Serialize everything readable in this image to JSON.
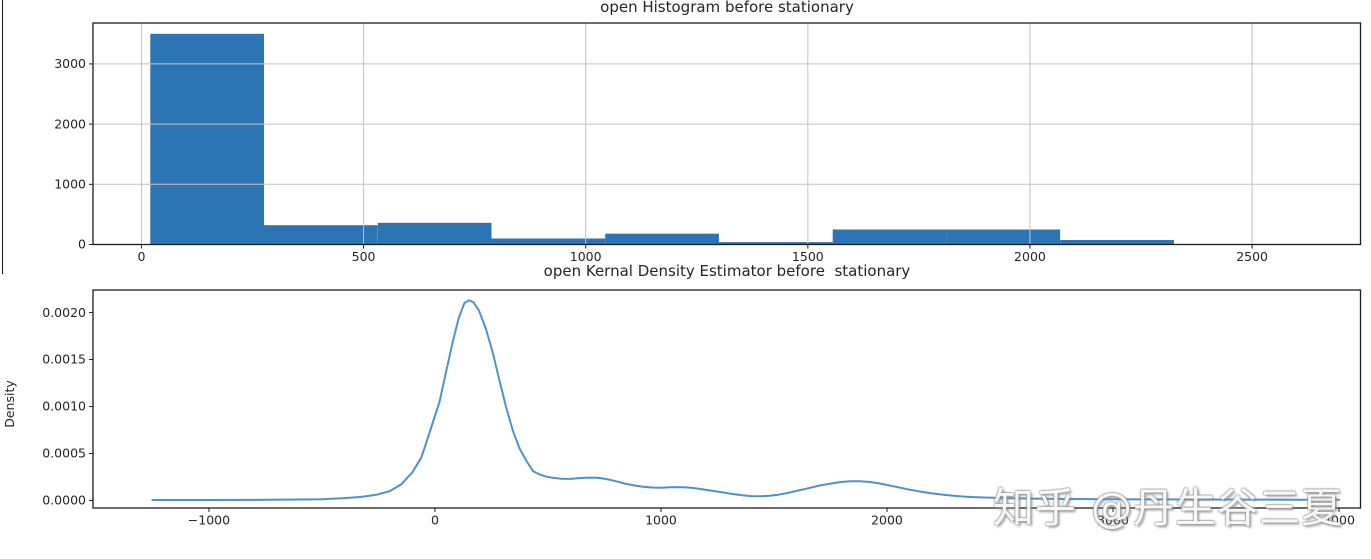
{
  "figure": {
    "watermark": "知乎 @丹生谷三夏"
  },
  "colors": {
    "bar_fill": "#2d74b5",
    "kde_line": "#4e91cc",
    "grid_line": "#c3c3c3",
    "axis_frame": "#1c1c1c",
    "tick_text": "#262626"
  },
  "chart_data": [
    {
      "type": "bar",
      "subtype": "histogram",
      "title": "open Histogram before stationary",
      "xlabel": "",
      "ylabel": "",
      "xlim": [
        -109,
        2744
      ],
      "ylim": [
        0,
        3680
      ],
      "xticks": [
        0,
        500,
        1000,
        1500,
        2000,
        2500
      ],
      "xtick_labels": [
        "0",
        "500",
        "1000",
        "1500",
        "2000",
        "2500"
      ],
      "yticks": [
        0,
        1000,
        2000,
        3000
      ],
      "ytick_labels": [
        "0",
        "1000",
        "2000",
        "3000"
      ],
      "grid": true,
      "legend": null,
      "bin_edges": [
        20,
        276,
        532,
        788,
        1044,
        1300,
        1556,
        1812,
        2068,
        2324
      ],
      "counts": [
        3500,
        320,
        360,
        100,
        180,
        40,
        250,
        250,
        75
      ]
    },
    {
      "type": "line",
      "subtype": "kde",
      "title": "open Kernal Density Estimator before  stationary",
      "xlabel": "",
      "ylabel": "Density",
      "xlim": [
        -1513,
        4095
      ],
      "ylim": [
        -8e-05,
        0.00224
      ],
      "xticks": [
        -1000,
        0,
        1000,
        2000,
        3000,
        4000
      ],
      "xtick_labels": [
        "−1000",
        "0",
        "1000",
        "2000",
        "3000",
        "4000"
      ],
      "yticks": [
        0,
        0.0005,
        0.001,
        0.0015,
        0.002
      ],
      "ytick_labels": [
        "0.0000",
        "0.0005",
        "0.0010",
        "0.0015",
        "0.0020"
      ],
      "grid": false,
      "legend": null,
      "points": [
        [
          -1250,
          5e-06
        ],
        [
          -1000,
          5e-06
        ],
        [
          -800,
          6e-06
        ],
        [
          -600,
          1e-05
        ],
        [
          -500,
          1.4e-05
        ],
        [
          -400,
          2.5e-05
        ],
        [
          -320,
          4e-05
        ],
        [
          -260,
          6e-05
        ],
        [
          -200,
          0.0001
        ],
        [
          -150,
          0.00017
        ],
        [
          -100,
          0.0003
        ],
        [
          -60,
          0.00046
        ],
        [
          -20,
          0.00075
        ],
        [
          20,
          0.00105
        ],
        [
          50,
          0.00138
        ],
        [
          80,
          0.0017
        ],
        [
          105,
          0.00194
        ],
        [
          130,
          0.0021
        ],
        [
          150,
          0.00213
        ],
        [
          170,
          0.00211
        ],
        [
          195,
          0.00202
        ],
        [
          225,
          0.00183
        ],
        [
          255,
          0.00158
        ],
        [
          285,
          0.00128
        ],
        [
          315,
          0.00099
        ],
        [
          345,
          0.00074
        ],
        [
          375,
          0.00055
        ],
        [
          405,
          0.00042
        ],
        [
          435,
          0.00031
        ],
        [
          465,
          0.000275
        ],
        [
          495,
          0.000252
        ],
        [
          525,
          0.00024
        ],
        [
          560,
          0.000232
        ],
        [
          600,
          0.00023
        ],
        [
          640,
          0.000238
        ],
        [
          680,
          0.000243
        ],
        [
          720,
          0.000242
        ],
        [
          760,
          0.000228
        ],
        [
          800,
          0.000205
        ],
        [
          840,
          0.00018
        ],
        [
          880,
          0.00016
        ],
        [
          920,
          0.000147
        ],
        [
          960,
          0.000138
        ],
        [
          1000,
          0.000136
        ],
        [
          1040,
          0.00014
        ],
        [
          1080,
          0.000142
        ],
        [
          1120,
          0.000138
        ],
        [
          1160,
          0.000128
        ],
        [
          1200,
          0.000113
        ],
        [
          1240,
          9.8e-05
        ],
        [
          1280,
          8.4e-05
        ],
        [
          1320,
          6.8e-05
        ],
        [
          1360,
          5.5e-05
        ],
        [
          1400,
          4.7e-05
        ],
        [
          1440,
          4.5e-05
        ],
        [
          1480,
          5e-05
        ],
        [
          1520,
          6.2e-05
        ],
        [
          1560,
          8e-05
        ],
        [
          1600,
          0.000102
        ],
        [
          1650,
          0.00013
        ],
        [
          1700,
          0.000158
        ],
        [
          1750,
          0.00018
        ],
        [
          1800,
          0.000198
        ],
        [
          1840,
          0.000205
        ],
        [
          1880,
          0.000205
        ],
        [
          1920,
          0.000198
        ],
        [
          1960,
          0.000185
        ],
        [
          2000,
          0.000165
        ],
        [
          2050,
          0.00014
        ],
        [
          2100,
          0.000115
        ],
        [
          2150,
          9.3e-05
        ],
        [
          2200,
          7.5e-05
        ],
        [
          2250,
          6e-05
        ],
        [
          2300,
          4.9e-05
        ],
        [
          2350,
          4e-05
        ],
        [
          2400,
          3.4e-05
        ],
        [
          2500,
          2.6e-05
        ],
        [
          2600,
          2.1e-05
        ],
        [
          2700,
          1.8e-05
        ],
        [
          2800,
          1.6e-05
        ],
        [
          2900,
          1.5e-05
        ],
        [
          3000,
          1.4e-05
        ],
        [
          3200,
          1.2e-05
        ],
        [
          3400,
          1e-05
        ],
        [
          3600,
          9e-06
        ],
        [
          3800,
          8e-06
        ],
        [
          4000,
          7e-06
        ]
      ]
    }
  ]
}
